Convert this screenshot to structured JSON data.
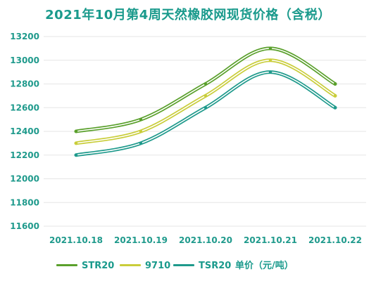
{
  "chart_data": {
    "type": "line",
    "title": "2021年10月第4周天然橡胶网现货价格（含税）",
    "categories": [
      "2021.10.18",
      "2021.10.19",
      "2021.10.20",
      "2021.10.21",
      "2021.10.22"
    ],
    "series": [
      {
        "name": "STR20",
        "values": [
          12400,
          12500,
          12800,
          13100,
          12800
        ],
        "color": "#5aa02c"
      },
      {
        "name": "9710",
        "values": [
          12300,
          12400,
          12700,
          13000,
          12700
        ],
        "color": "#c9cd3a"
      },
      {
        "name": "TSR20",
        "values": [
          12200,
          12300,
          12600,
          12900,
          12600
        ],
        "color": "#1f9a8c"
      }
    ],
    "ylim": [
      11600,
      13200
    ],
    "yticks": [
      11600,
      11800,
      12000,
      12200,
      12400,
      12600,
      12800,
      13000,
      13200
    ],
    "grid": true,
    "legend_position": "bottom",
    "unit": "单价（元/吨）"
  }
}
